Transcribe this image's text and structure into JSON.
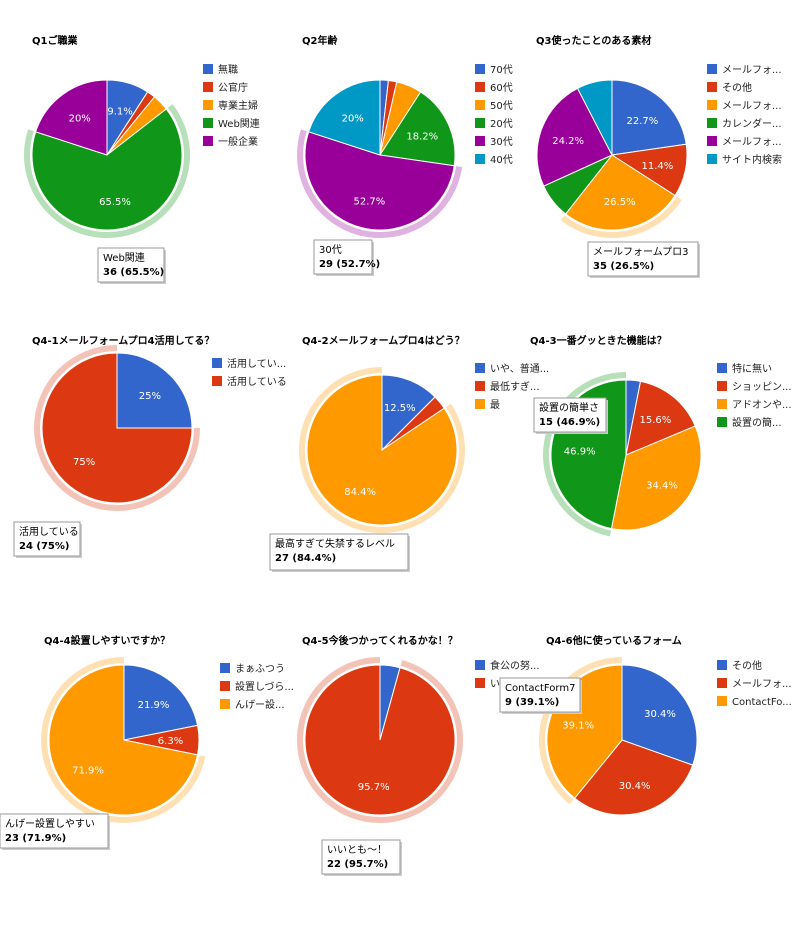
{
  "colors": {
    "blue": "#3366cc",
    "red": "#dc3912",
    "orange": "#ff9900",
    "green": "#109618",
    "purple": "#990099",
    "teal": "#0099c6"
  },
  "chart_data": [
    {
      "type": "pie",
      "title": "Q1ご職業",
      "legend_position": "right",
      "slices": [
        {
          "label": "無職",
          "value": 9.1,
          "display": "9.1%",
          "color": "#3366cc"
        },
        {
          "label": "公官庁",
          "value": 1.8,
          "display": "",
          "color": "#dc3912"
        },
        {
          "label": "専業主婦",
          "value": 3.6,
          "display": "",
          "color": "#ff9900"
        },
        {
          "label": "Web関連",
          "value": 65.5,
          "display": "65.5%",
          "color": "#109618"
        },
        {
          "label": "一般企業",
          "value": 20.0,
          "display": "20%",
          "color": "#990099"
        }
      ],
      "highlight_index": 3,
      "tooltip": {
        "label": "Web関連",
        "value": "36 (65.5%)"
      }
    },
    {
      "type": "pie",
      "title": "Q2年齢",
      "legend_position": "right",
      "slices": [
        {
          "label": "70代",
          "value": 1.8,
          "display": "",
          "color": "#3366cc"
        },
        {
          "label": "60代",
          "value": 1.8,
          "display": "",
          "color": "#dc3912"
        },
        {
          "label": "50代",
          "value": 5.5,
          "display": "",
          "color": "#ff9900"
        },
        {
          "label": "20代",
          "value": 18.2,
          "display": "18.2%",
          "color": "#109618"
        },
        {
          "label": "30代",
          "value": 52.7,
          "display": "52.7%",
          "color": "#990099"
        },
        {
          "label": "40代",
          "value": 20.0,
          "display": "20%",
          "color": "#0099c6"
        }
      ],
      "highlight_index": 4,
      "tooltip": {
        "label": "30代",
        "value": "29 (52.7%)"
      }
    },
    {
      "type": "pie",
      "title": "Q3使ったことのある素材",
      "legend_position": "right",
      "slices": [
        {
          "label": "メールフォ...",
          "value": 22.7,
          "display": "22.7%",
          "color": "#3366cc"
        },
        {
          "label": "その他",
          "value": 11.4,
          "display": "11.4%",
          "color": "#dc3912"
        },
        {
          "label": "メールフォ...",
          "value": 26.5,
          "display": "26.5%",
          "color": "#ff9900"
        },
        {
          "label": "カレンダー...",
          "value": 7.6,
          "display": "",
          "color": "#109618"
        },
        {
          "label": "メールフォ...",
          "value": 24.2,
          "display": "24.2%",
          "color": "#990099"
        },
        {
          "label": "サイト内検索",
          "value": 7.6,
          "display": "",
          "color": "#0099c6"
        }
      ],
      "highlight_index": 2,
      "tooltip": {
        "label": "メールフォームプロ3",
        "value": "35 (26.5%)"
      }
    },
    {
      "type": "pie",
      "title": "Q4-1メールフォームプロ4活用してる？",
      "legend_position": "right",
      "slices": [
        {
          "label": "活用してい...",
          "value": 25,
          "display": "25%",
          "color": "#3366cc"
        },
        {
          "label": "活用している",
          "value": 75,
          "display": "75%",
          "color": "#dc3912"
        }
      ],
      "highlight_index": 1,
      "tooltip": {
        "label": "活用している",
        "value": "24 (75%)"
      }
    },
    {
      "type": "pie",
      "title": "Q4-2メールフォームプロ4はどう？",
      "legend_position": "right",
      "slices": [
        {
          "label": "いや、普通...",
          "value": 12.5,
          "display": "12.5%",
          "color": "#3366cc"
        },
        {
          "label": "最低すぎ...",
          "value": 3.1,
          "display": "",
          "color": "#dc3912"
        },
        {
          "label": "最",
          "value": 84.4,
          "display": "84.4%",
          "color": "#ff9900"
        }
      ],
      "highlight_index": 2,
      "tooltip": {
        "label": "最高すぎて失禁するレベル",
        "value": "27 (84.4%)"
      }
    },
    {
      "type": "pie",
      "title": "Q4-3一番グッときた機能は？",
      "legend_position": "right",
      "slices": [
        {
          "label": "特に無い",
          "value": 3.1,
          "display": "",
          "color": "#3366cc"
        },
        {
          "label": "ショッピン...",
          "value": 15.6,
          "display": "15.6%",
          "color": "#dc3912"
        },
        {
          "label": "アドオンや...",
          "value": 34.4,
          "display": "34.4%",
          "color": "#ff9900"
        },
        {
          "label": "設置の簡...",
          "value": 46.9,
          "display": "46.9%",
          "color": "#109618"
        }
      ],
      "highlight_index": 3,
      "tooltip": {
        "label": "設置の簡単さ",
        "value": "15 (46.9%)"
      }
    },
    {
      "type": "pie",
      "title": "Q4-4設置しやすいですか？",
      "legend_position": "right",
      "slices": [
        {
          "label": "まぁふつう",
          "value": 21.9,
          "display": "21.9%",
          "color": "#3366cc"
        },
        {
          "label": "設置しづら...",
          "value": 6.3,
          "display": "6.3%",
          "color": "#dc3912"
        },
        {
          "label": "んげー設...",
          "value": 71.9,
          "display": "71.9%",
          "color": "#ff9900"
        }
      ],
      "highlight_index": 2,
      "tooltip": {
        "label": "んげー設置しやすい",
        "value": "23 (71.9%)"
      }
    },
    {
      "type": "pie",
      "title": "Q4-5今後つかってくれるかな！？",
      "legend_position": "right",
      "slices": [
        {
          "label": "食公の努...",
          "value": 4.3,
          "display": "",
          "color": "#3366cc"
        },
        {
          "label": "いい",
          "value": 95.7,
          "display": "95.7%",
          "color": "#dc3912"
        }
      ],
      "highlight_index": 1,
      "tooltip": {
        "label": "いいとも～！",
        "value": "22 (95.7%)"
      }
    },
    {
      "type": "pie",
      "title": "Q4-6他に使っているフォーム",
      "legend_position": "right",
      "slices": [
        {
          "label": "その他",
          "value": 30.4,
          "display": "30.4%",
          "color": "#3366cc"
        },
        {
          "label": "メールフォ...",
          "value": 30.4,
          "display": "30.4%",
          "color": "#dc3912"
        },
        {
          "label": "ContactFo...",
          "value": 39.1,
          "display": "39.1%",
          "color": "#ff9900"
        }
      ],
      "highlight_index": 2,
      "tooltip": {
        "label": "ContactForm7",
        "value": "9 (39.1%)"
      }
    }
  ]
}
